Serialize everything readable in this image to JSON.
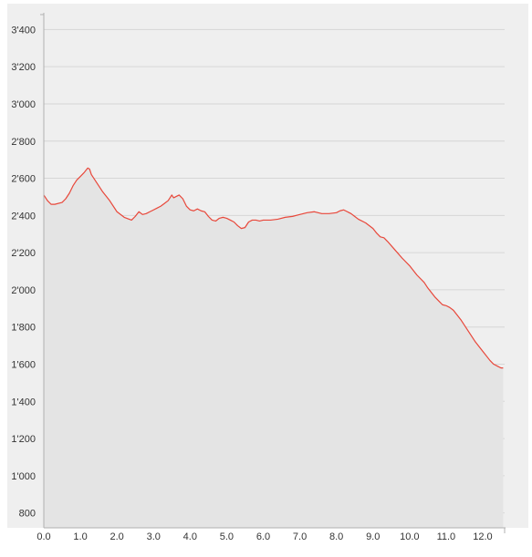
{
  "colors": {
    "plot_background": "#efefef",
    "area_fill": "#e4e4e4",
    "line": "#e8473a",
    "grid": "#d6d6d6",
    "axis": "#b0b0b0"
  },
  "chart_data": {
    "type": "area",
    "title": "",
    "xlabel": "",
    "ylabel": "",
    "xlim": [
      0,
      12.6
    ],
    "ylim": [
      720,
      3500
    ],
    "x_ticks": [
      0,
      1,
      2,
      3,
      4,
      5,
      6,
      7,
      8,
      9,
      10,
      11,
      12
    ],
    "x_tick_labels": [
      "0.0",
      "1.0",
      "2.0",
      "3.0",
      "4.0",
      "5.0",
      "6.0",
      "7.0",
      "8.0",
      "9.0",
      "10.0",
      "11.0",
      "12.0"
    ],
    "y_ticks": [
      800,
      1000,
      1200,
      1400,
      1600,
      1800,
      2000,
      2200,
      2400,
      2600,
      2800,
      3000,
      3200,
      3400
    ],
    "y_tick_labels": [
      "800",
      "1'000",
      "1'200",
      "1'400",
      "1'600",
      "1'800",
      "2'000",
      "2'200",
      "2'400",
      "2'600",
      "2'800",
      "3'000",
      "3'200",
      "3'400"
    ],
    "grid": true,
    "legend": "none",
    "series": [
      {
        "x": [
          0.0,
          0.1,
          0.2,
          0.3,
          0.5,
          0.6,
          0.7,
          0.8,
          0.9,
          1.0,
          1.1,
          1.2,
          1.25,
          1.3,
          1.4,
          1.6,
          1.8,
          2.0,
          2.2,
          2.4,
          2.5,
          2.6,
          2.7,
          2.8,
          2.9,
          3.0,
          3.1,
          3.2,
          3.3,
          3.4,
          3.5,
          3.55,
          3.6,
          3.7,
          3.8,
          3.9,
          4.0,
          4.1,
          4.2,
          4.3,
          4.4,
          4.5,
          4.6,
          4.7,
          4.8,
          4.9,
          5.0,
          5.1,
          5.2,
          5.3,
          5.4,
          5.5,
          5.6,
          5.7,
          5.8,
          5.9,
          6.0,
          6.2,
          6.4,
          6.6,
          6.8,
          7.0,
          7.2,
          7.4,
          7.6,
          7.8,
          8.0,
          8.1,
          8.2,
          8.3,
          8.4,
          8.5,
          8.6,
          8.8,
          9.0,
          9.1,
          9.2,
          9.3,
          9.4,
          9.6,
          9.8,
          10.0,
          10.2,
          10.4,
          10.5,
          10.6,
          10.7,
          10.8,
          10.9,
          11.0,
          11.1,
          11.2,
          11.4,
          11.6,
          11.8,
          12.0,
          12.2,
          12.3,
          12.4,
          12.5,
          12.56
        ],
        "y": [
          2510,
          2480,
          2460,
          2460,
          2470,
          2490,
          2520,
          2560,
          2590,
          2610,
          2630,
          2655,
          2650,
          2620,
          2590,
          2530,
          2480,
          2420,
          2390,
          2375,
          2395,
          2420,
          2405,
          2410,
          2420,
          2430,
          2440,
          2450,
          2465,
          2480,
          2510,
          2495,
          2500,
          2510,
          2490,
          2450,
          2430,
          2425,
          2435,
          2425,
          2420,
          2395,
          2375,
          2370,
          2385,
          2390,
          2385,
          2375,
          2365,
          2345,
          2330,
          2335,
          2365,
          2375,
          2375,
          2370,
          2375,
          2375,
          2380,
          2390,
          2395,
          2405,
          2415,
          2420,
          2410,
          2410,
          2415,
          2425,
          2430,
          2420,
          2410,
          2395,
          2380,
          2360,
          2330,
          2305,
          2285,
          2280,
          2260,
          2215,
          2170,
          2130,
          2080,
          2040,
          2010,
          1985,
          1960,
          1940,
          1920,
          1915,
          1905,
          1890,
          1840,
          1780,
          1720,
          1670,
          1620,
          1600,
          1590,
          1580,
          1580
        ]
      }
    ]
  }
}
